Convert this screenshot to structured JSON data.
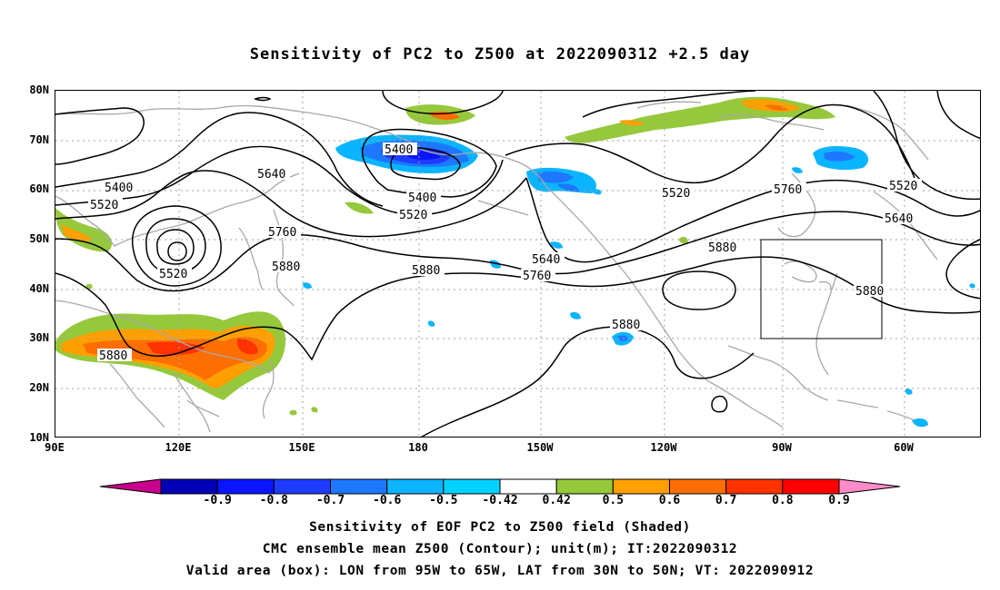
{
  "title": "Sensitivity of PC2 to Z500 at 2022090312 +2.5 day",
  "axes": {
    "lat_labels": [
      "80N",
      "70N",
      "60N",
      "50N",
      "40N",
      "30N",
      "20N",
      "10N"
    ],
    "lon_labels": [
      "90E",
      "120E",
      "150E",
      "180",
      "150W",
      "120W",
      "90W",
      "60W"
    ]
  },
  "colorbar": {
    "labels": [
      "-0.9",
      "-0.8",
      "-0.7",
      "-0.6",
      "-0.5",
      "-0.42",
      "0.42",
      "0.5",
      "0.6",
      "0.7",
      "0.8",
      "0.9"
    ],
    "colors": [
      "#c8008c",
      "#0000b4",
      "#0a14ff",
      "#1e3cff",
      "#1e78ff",
      "#0ab4ff",
      "#00d2ff",
      "#ffffff",
      "#96c83c",
      "#ffa000",
      "#ff6e00",
      "#ff3200",
      "#ff0000",
      "#ff8cc8"
    ]
  },
  "contour_labels": {
    "c5400_a": "5400",
    "c5400_b": "5400",
    "c5400_c": "5400",
    "c5520_a": "5520",
    "c5520_b": "5520",
    "c5520_c": "5520",
    "c5520_d": "5520",
    "c5520_e": "5520",
    "c5640_a": "5640",
    "c5640_b": "5640",
    "c5640_c": "5640",
    "c5760_a": "5760",
    "c5760_b": "5760",
    "c5760_c": "5760",
    "c5880_a": "5880",
    "c5880_b": "5880",
    "c5880_c": "5880",
    "c5880_d": "5880",
    "c5880_e": "5880"
  },
  "captions": {
    "line1": "Sensitivity of EOF PC2 to Z500 field (Shaded)",
    "line2": "CMC ensemble mean Z500 (Contour); unit(m); IT:2022090312",
    "line3": "Valid area (box): LON from 95W to 65W, LAT from 30N to 50N; VT: 2022090912"
  }
}
